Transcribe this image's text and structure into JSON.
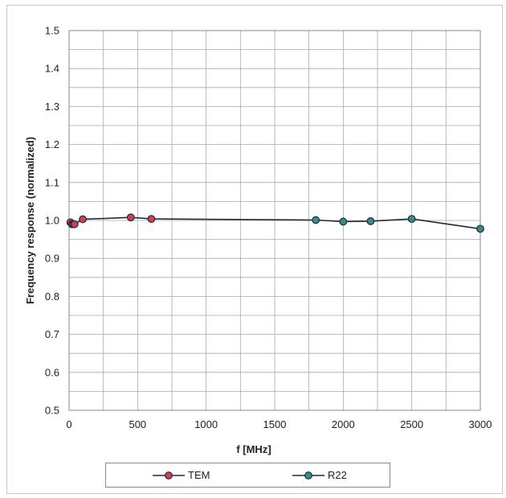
{
  "chart_data": {
    "type": "line",
    "xlabel": "f [MHz]",
    "ylabel": "Frequency response (normalized)",
    "xlim": [
      0,
      3000
    ],
    "ylim": [
      0.5,
      1.5
    ],
    "x_ticks": [
      "0",
      "500",
      "1000",
      "1500",
      "2000",
      "2500",
      "3000"
    ],
    "y_ticks": [
      "0.5",
      "0.6",
      "0.7",
      "0.8",
      "0.9",
      "1.0",
      "1.1",
      "1.2",
      "1.3",
      "1.4",
      "1.5"
    ],
    "grid": true,
    "legend_position": "bottom",
    "line_color": "#1e2d36",
    "series": [
      {
        "name": "TEM",
        "color": "#d63b4f",
        "x": [
          10,
          20,
          30,
          40,
          100,
          450,
          600
        ],
        "y": [
          0.995,
          0.99,
          0.99,
          0.99,
          1.003,
          1.008,
          1.004
        ]
      },
      {
        "name": "R22",
        "color": "#3a8a86",
        "x": [
          1800,
          2000,
          2200,
          2500,
          3000
        ],
        "y": [
          1.001,
          0.997,
          0.998,
          1.004,
          0.978
        ]
      }
    ]
  }
}
